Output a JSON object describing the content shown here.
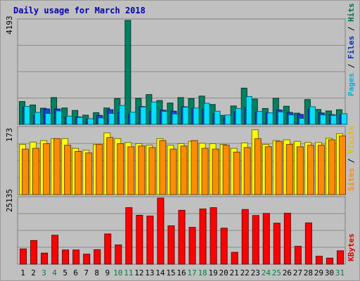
{
  "chart_data": {
    "type": "bar",
    "title": "Daily usage for March 2018",
    "categories": [
      "1",
      "2",
      "3",
      "4",
      "5",
      "6",
      "7",
      "8",
      "9",
      "10",
      "11",
      "12",
      "13",
      "14",
      "15",
      "16",
      "17",
      "18",
      "19",
      "20",
      "21",
      "22",
      "23",
      "24",
      "25",
      "26",
      "27",
      "28",
      "29",
      "30",
      "31"
    ],
    "weekend_days": [
      "3",
      "4",
      "10",
      "11",
      "17",
      "18",
      "24",
      "25",
      "31"
    ],
    "panels": [
      {
        "name": "hits-files-pages",
        "ymax_label": "4193",
        "ymax": 4193,
        "side_labels": [
          {
            "text": "Pages",
            "color": "#00b4d8"
          },
          {
            "text": " / ",
            "color": "#000000"
          },
          {
            "text": "Files",
            "color": "#0030c0"
          },
          {
            "text": " / ",
            "color": "#000000"
          },
          {
            "text": "Hits",
            "color": "#007050"
          }
        ],
        "series": [
          {
            "name": "Hits",
            "color": "#008060",
            "values": [
              920,
              780,
              650,
              1080,
              660,
              560,
              370,
              470,
              660,
              1040,
              4193,
              1050,
              1200,
              960,
              860,
              1080,
              1040,
              1140,
              800,
              360,
              740,
              1460,
              1020,
              640,
              1050,
              730,
              450,
              1000,
              600,
              540,
              590
            ]
          },
          {
            "name": "Files",
            "color": "#2040e0",
            "values": [
              700,
              350,
              620,
              620,
              300,
              300,
              220,
              360,
              590,
              470,
              420,
              720,
              520,
              570,
              530,
              710,
              650,
              610,
              430,
              260,
              510,
              680,
              490,
              460,
              580,
              480,
              400,
              620,
              460,
              390,
              380
            ]
          },
          {
            "name": "Pages",
            "color": "#00e0ff",
            "values": [
              720,
              480,
              440,
              540,
              330,
              280,
              230,
              260,
              440,
              760,
              490,
              700,
              900,
              520,
              420,
              690,
              660,
              850,
              530,
              380,
              640,
              1120,
              520,
              460,
              500,
              380,
              240,
              710,
              380,
              360,
              430
            ]
          }
        ]
      },
      {
        "name": "visits-sites",
        "ymax_label": "173",
        "ymax": 173,
        "side_labels": [
          {
            "text": "Sites",
            "color": "#ff8c00"
          },
          {
            "text": " / ",
            "color": "#000000"
          },
          {
            "text": "Visits",
            "color": "#e0c000"
          }
        ],
        "series": [
          {
            "name": "Visits",
            "color": "#ffff00",
            "values": [
              130,
              136,
              140,
              145,
              145,
              120,
              115,
              130,
              160,
              145,
              135,
              132,
              128,
              145,
              128,
              132,
              138,
              133,
              132,
              130,
              120,
              134,
              168,
              130,
              140,
              142,
              138,
              135,
              135,
              146,
              158
            ]
          },
          {
            "name": "Sites",
            "color": "#ff8c00",
            "values": [
              118,
              120,
              132,
              145,
              128,
              112,
              108,
              130,
              148,
              132,
              124,
              126,
              122,
              140,
              118,
              126,
              140,
              120,
              118,
              128,
              110,
              122,
              145,
              124,
              138,
              130,
              124,
              128,
              128,
              142,
              152
            ]
          }
        ]
      },
      {
        "name": "kbytes",
        "ymax_label": "25135",
        "ymax": 25135,
        "side_labels": [
          {
            "text": "KBytes",
            "color": "#e00000"
          }
        ],
        "series": [
          {
            "name": "KBytes",
            "color": "#ff0000",
            "values": [
              5800,
              9000,
              4200,
              11000,
              5400,
              5400,
              3800,
              5500,
              11500,
              7300,
              21500,
              18600,
              18300,
              25135,
              14600,
              20500,
              14000,
              21000,
              21500,
              13700,
              4500,
              20800,
              18500,
              19300,
              15600,
              19400,
              6800,
              15700,
              3000,
              2300,
              5100
            ]
          }
        ]
      }
    ]
  }
}
